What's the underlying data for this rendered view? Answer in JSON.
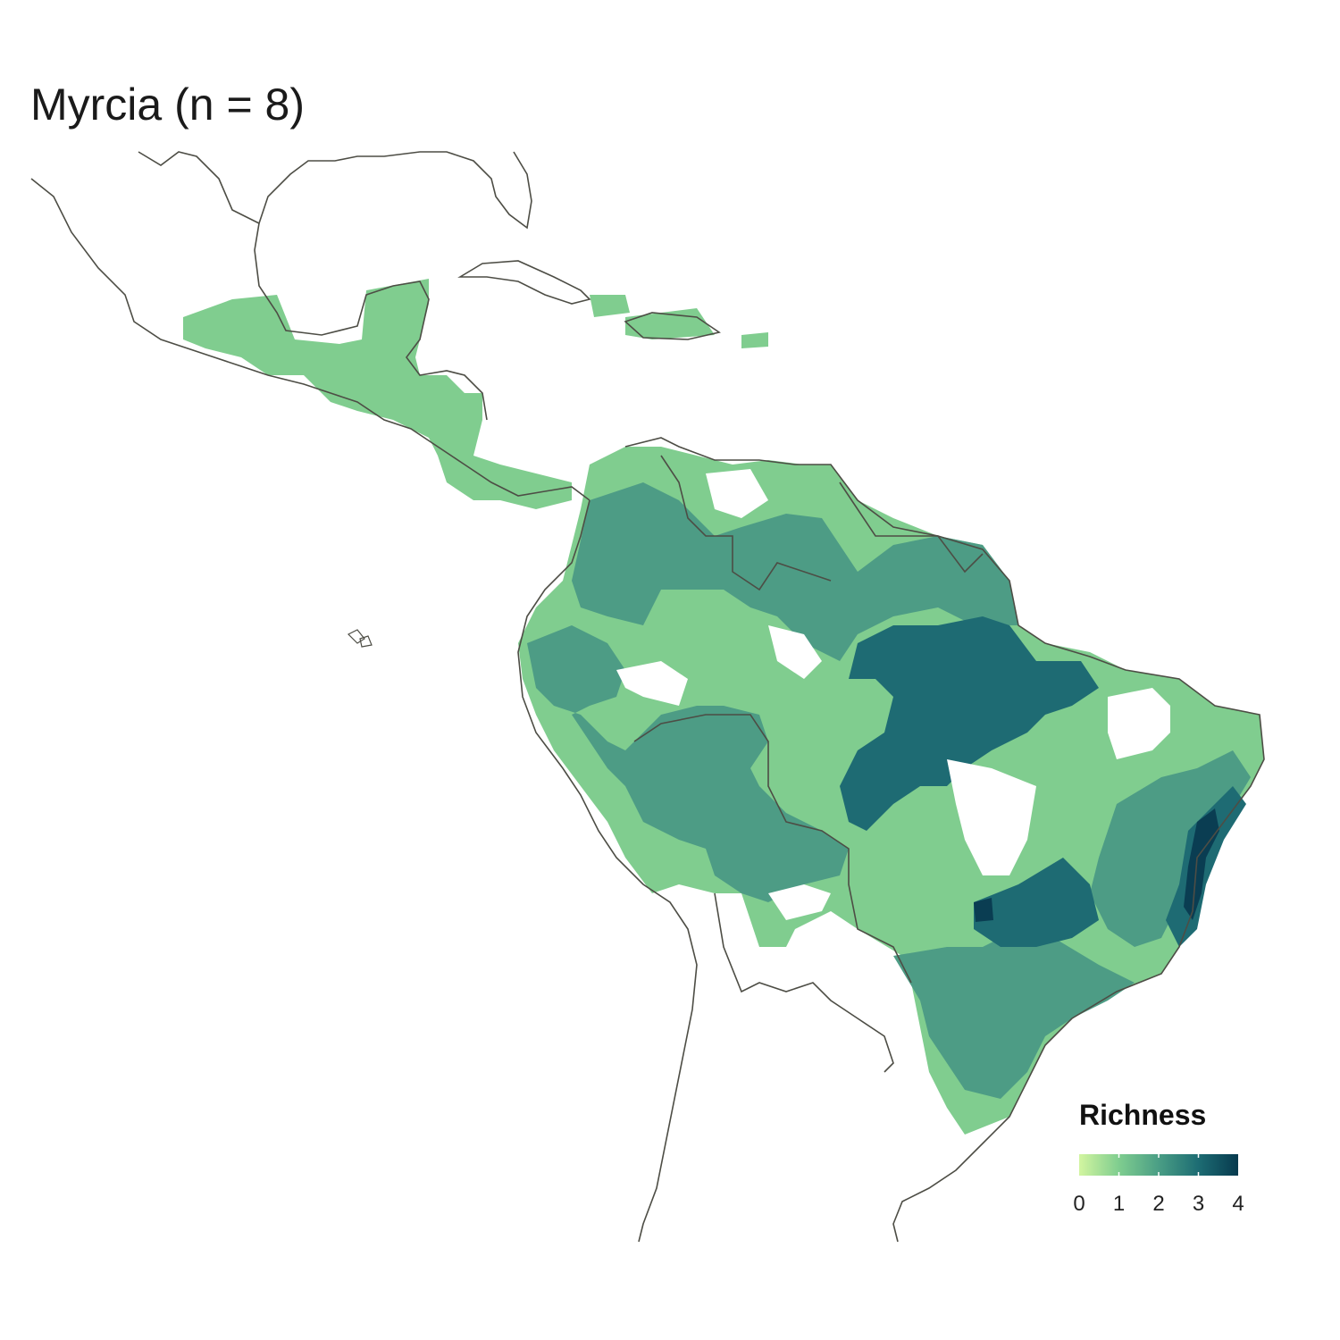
{
  "title": "Myrcia (n = 8)",
  "legend": {
    "title": "Richness",
    "ticks": [
      "0",
      "1",
      "2",
      "3",
      "4"
    ],
    "min": 0,
    "max": 4,
    "gradient_colors": [
      "#d2f5a0",
      "#7fcd8f",
      "#4a9e85",
      "#1d6c73",
      "#073a4e"
    ]
  },
  "colors": {
    "coastline": "#4d4d45",
    "richness_1": "#80cd8f",
    "richness_2": "#4d9c85",
    "richness_3": "#1e6b73",
    "richness_4": "#0a3d52"
  },
  "map": {
    "region": "Latin America",
    "layer": "species richness grid"
  }
}
